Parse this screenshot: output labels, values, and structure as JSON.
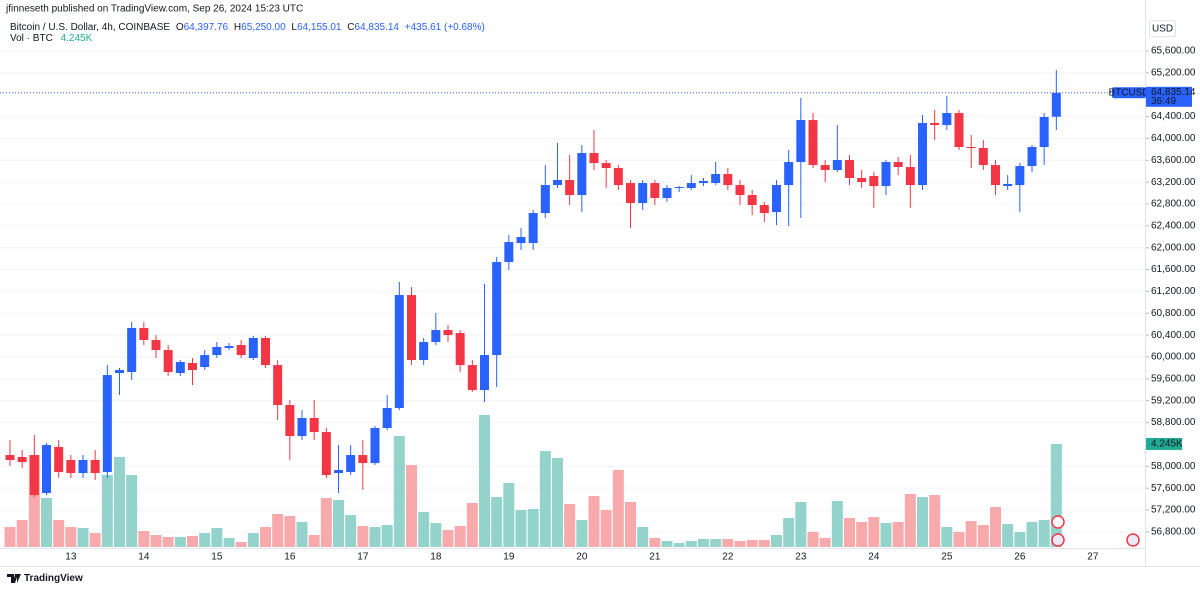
{
  "header": {
    "publisher": "jfinneseth published on TradingView.com, Sep 26, 2024 15:23 UTC"
  },
  "chart_data": {
    "type": "candlestick",
    "symbol": "Bitcoin / U.S. Dollar, 4h, COINBASE",
    "ohlc_legend": [
      {
        "label": "O",
        "value": "64,397.76"
      },
      {
        "label": "H",
        "value": "65,250.00"
      },
      {
        "label": "L",
        "value": "64,155.01"
      },
      {
        "label": "C",
        "value": "64,835.14"
      }
    ],
    "change": "+435.61 (+0.68%)",
    "volume_legend": "Vol · BTC",
    "volume_label": "4.245K",
    "currency": "USD",
    "ticker": "BTCUSD",
    "countdown": "36:49",
    "date_labels": [
      "13",
      "14",
      "15",
      "16",
      "17",
      "18",
      "19",
      "20",
      "21",
      "22",
      "23",
      "24",
      "25",
      "26",
      "27"
    ],
    "open": [
      58206,
      58170,
      58206,
      57511,
      58353,
      58115,
      57877,
      58115,
      57895,
      59707,
      59725,
      60531,
      60311,
      60128,
      59707,
      59890,
      59817,
      60036,
      60165,
      60219,
      59982,
      60348,
      59853,
      59121,
      58554,
      58884,
      58627,
      57877,
      57895,
      58206,
      58060,
      58701,
      59067,
      61134,
      59945,
      60274,
      60494,
      60439,
      59853,
      59396,
      60036,
      61738,
      62086,
      62086,
      62635,
      63147,
      63239,
      62964,
      63733,
      63550,
      63459,
      63184,
      62818,
      63184,
      62910,
      63093,
      63093,
      63184,
      63184,
      63349,
      63147,
      62964,
      62781,
      62653,
      63147,
      63568,
      64337,
      63513,
      63422,
      63605,
      63276,
      63312,
      63129,
      63568,
      63477,
      63147,
      64282,
      64245,
      64465,
      63843,
      63825,
      63513,
      63129,
      63147,
      63495,
      63843,
      64397.76
    ],
    "high": [
      58481,
      58298,
      58572,
      58426,
      58481,
      58206,
      58206,
      58298,
      59853,
      59799,
      60640,
      60640,
      60402,
      60219,
      59945,
      59982,
      60128,
      60274,
      60256,
      60311,
      60384,
      60384,
      59945,
      59213,
      59030,
      59213,
      58701,
      58389,
      58389,
      58481,
      58737,
      59304,
      61372,
      61281,
      60348,
      60805,
      60585,
      60494,
      59945,
      61336,
      61830,
      62232,
      62361,
      62690,
      63513,
      63916,
      63696,
      63879,
      64154,
      63605,
      63513,
      63239,
      63239,
      63239,
      63147,
      63129,
      63330,
      63276,
      63568,
      63459,
      63239,
      63056,
      62836,
      63239,
      63788,
      64740,
      64465,
      63605,
      64245,
      63696,
      63422,
      63385,
      63605,
      63660,
      63696,
      64428,
      64520,
      64776,
      64520,
      64062,
      63971,
      63605,
      63330,
      63550,
      63879,
      64465,
      65250
    ],
    "low": [
      58005,
      57969,
      57438,
      57474,
      57786,
      57786,
      57786,
      57749,
      57786,
      59304,
      59579,
      60219,
      59982,
      59652,
      59652,
      59487,
      59762,
      59982,
      60128,
      59982,
      59945,
      59799,
      58847,
      58115,
      58481,
      58481,
      57786,
      57511,
      57840,
      57566,
      58023,
      58664,
      59030,
      59853,
      59853,
      60219,
      60274,
      59725,
      59359,
      59176,
      59451,
      61592,
      61958,
      61958,
      62544,
      63093,
      62781,
      62653,
      63422,
      63093,
      63056,
      62361,
      62690,
      62781,
      62836,
      63019,
      63056,
      63129,
      63147,
      63056,
      62781,
      62598,
      62470,
      62415,
      62397,
      62544,
      63459,
      63202,
      63385,
      63147,
      63093,
      62727,
      62964,
      63330,
      62727,
      63056,
      63971,
      64154,
      63788,
      63459,
      63422,
      62964,
      63056,
      62653,
      63385,
      63513,
      64155.01
    ],
    "close": [
      58115,
      58078,
      57474,
      58389,
      57895,
      57877,
      58115,
      57877,
      59670,
      59762,
      60531,
      60311,
      60128,
      59725,
      59908,
      59762,
      60036,
      60183,
      60201,
      60036,
      60348,
      59853,
      59121,
      58554,
      58884,
      58627,
      57840,
      57932,
      58206,
      58060,
      58701,
      59067,
      61134,
      59945,
      60274,
      60494,
      60402,
      59853,
      59396,
      60036,
      61738,
      62104,
      62196,
      62635,
      63147,
      63239,
      62964,
      63733,
      63550,
      63459,
      63147,
      62818,
      63184,
      62910,
      63093,
      63111,
      63184,
      63221,
      63349,
      63147,
      62964,
      62781,
      62635,
      63147,
      63568,
      64337,
      63513,
      63422,
      63605,
      63276,
      63202,
      63129,
      63568,
      63477,
      63147,
      64282,
      64245,
      64465,
      63843,
      63825,
      63513,
      63147,
      63166,
      63495,
      63843,
      64392,
      64835.14
    ],
    "volume": [
      824,
      1112,
      3790,
      2019,
      1112,
      824,
      783,
      577,
      2966,
      3708,
      2966,
      659,
      494,
      412,
      412,
      453,
      577,
      783,
      371,
      206,
      577,
      824,
      1360,
      1277,
      1030,
      494,
      2019,
      1936,
      1318,
      865,
      824,
      906,
      4573,
      3378,
      1442,
      989,
      700,
      865,
      1813,
      5438,
      2060,
      2637,
      1524,
      1566,
      3955,
      3667,
      1772,
      1112,
      2101,
      1524,
      3172,
      1854,
      824,
      371,
      247,
      165,
      247,
      330,
      330,
      330,
      247,
      288,
      288,
      494,
      1195,
      1854,
      618,
      371,
      1895,
      1195,
      1030,
      1236,
      989,
      1030,
      2184,
      2060,
      2142,
      824,
      618,
      1071,
      906,
      1648,
      948,
      618,
      1030,
      1112,
      4245
    ],
    "up_color": "#2962ff",
    "down_color": "#f23645",
    "volume_up_color": "#93d3cb",
    "volume_down_color": "#f8a9ac",
    "volume_label_color": "#22ab94",
    "ylim": [
      56505,
      66204
    ],
    "yticks": [
      {
        "value": 65600,
        "label": "65,600.00"
      },
      {
        "value": 65200,
        "label": "65,200.00"
      },
      {
        "value": 64400,
        "label": "64,400.00"
      },
      {
        "value": 64000,
        "label": "64,000.00"
      },
      {
        "value": 63600,
        "label": "63,600.00"
      },
      {
        "value": 63200,
        "label": "63,200.00"
      },
      {
        "value": 62800,
        "label": "62,800.00"
      },
      {
        "value": 62400,
        "label": "62,400.00"
      },
      {
        "value": 62000,
        "label": "62,000.00"
      },
      {
        "value": 61600,
        "label": "61,600.00"
      },
      {
        "value": 61200,
        "label": "61,200.00"
      },
      {
        "value": 60800,
        "label": "60,800.00"
      },
      {
        "value": 60400,
        "label": "60,400.00"
      },
      {
        "value": 60000,
        "label": "60,000.00"
      },
      {
        "value": 59600,
        "label": "59,600.00"
      },
      {
        "value": 59200,
        "label": "59,200.00"
      },
      {
        "value": 58800,
        "label": "58,800.00"
      },
      {
        "value": 58000,
        "label": "58,000.00"
      },
      {
        "value": 57600,
        "label": "57,600.00"
      },
      {
        "value": 57200,
        "label": "57,200.00"
      },
      {
        "value": 56800,
        "label": "56,800.00"
      }
    ],
    "grid": true
  },
  "footer": {
    "brand": "TradingView"
  }
}
